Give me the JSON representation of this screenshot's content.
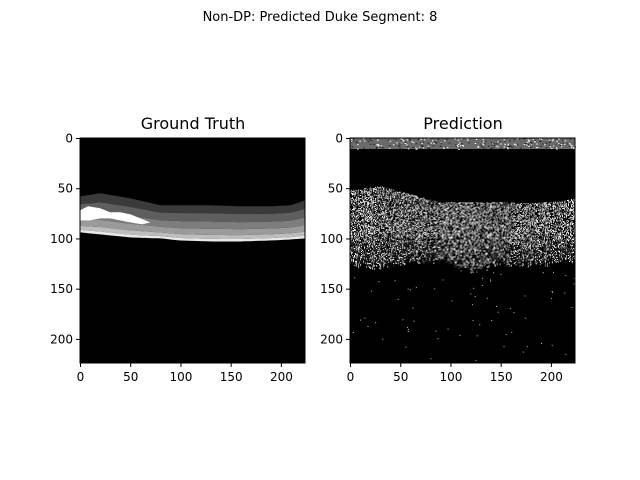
{
  "figure": {
    "suptitle": "Non-DP: Predicted Duke Segment: 8"
  },
  "chart_data": [
    {
      "type": "heatmap",
      "title": "Ground Truth",
      "colormap": "gray",
      "xlim": [
        0,
        223
      ],
      "ylim": [
        223,
        0
      ],
      "x_ticks": [
        0,
        50,
        100,
        150,
        200
      ],
      "y_ticks": [
        0,
        50,
        100,
        150,
        200
      ],
      "layer_boundaries_y": {
        "x": [
          0,
          20,
          50,
          80,
          100,
          130,
          160,
          190,
          210,
          224
        ],
        "top": [
          58,
          55,
          60,
          67,
          67,
          67,
          68,
          68,
          67,
          62
        ],
        "bottom": [
          94,
          96,
          99,
          100,
          102,
          103,
          103,
          102,
          101,
          100
        ]
      },
      "bright_patch": {
        "x_range": [
          0,
          70
        ],
        "y_range": [
          68,
          86
        ]
      }
    },
    {
      "type": "heatmap",
      "title": "Prediction",
      "colormap": "gray",
      "xlim": [
        0,
        223
      ],
      "ylim": [
        223,
        0
      ],
      "x_ticks": [
        0,
        50,
        100,
        150,
        200
      ],
      "y_ticks": [
        0,
        50,
        100,
        150,
        200
      ],
      "top_band_y_range": [
        0,
        11
      ],
      "noisy_region": {
        "x": [
          0,
          30,
          60,
          90,
          120,
          150,
          180,
          210,
          224
        ],
        "top": [
          52,
          48,
          56,
          64,
          64,
          64,
          65,
          63,
          60
        ],
        "bottom": [
          130,
          132,
          126,
          124,
          135,
          128,
          130,
          126,
          124
        ]
      }
    }
  ],
  "colors": {
    "background": "#ffffff",
    "image_background": "#000000"
  }
}
